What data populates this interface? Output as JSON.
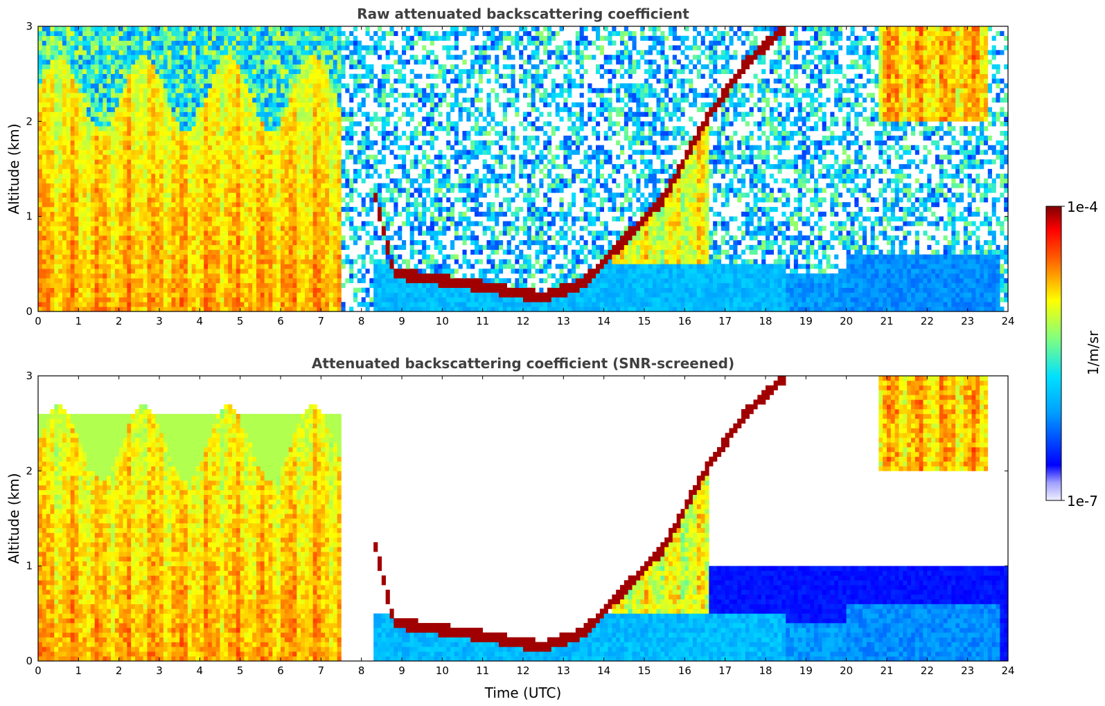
{
  "chart_data": [
    {
      "type": "heatmap",
      "title": "Raw attenuated backscattering coefficient",
      "xlabel": "",
      "ylabel": "Altitude (km)",
      "xlim": [
        0,
        24
      ],
      "ylim": [
        0,
        3
      ],
      "xticks": [
        "0",
        "1",
        "2",
        "3",
        "4",
        "5",
        "6",
        "7",
        "8",
        "9",
        "10",
        "11",
        "12",
        "13",
        "14",
        "15",
        "16",
        "17",
        "18",
        "19",
        "20",
        "21",
        "22",
        "23",
        "24"
      ],
      "yticks": [
        "0",
        "1",
        "2",
        "3"
      ],
      "color_scale": "log",
      "noise": "high",
      "cloud_base_km": [
        {
          "t": 8.3,
          "alt": 1.3
        },
        {
          "t": 8.8,
          "alt": 0.4
        },
        {
          "t": 10.5,
          "alt": 0.3
        },
        {
          "t": 12.5,
          "alt": 0.15
        },
        {
          "t": 13.5,
          "alt": 0.3
        },
        {
          "t": 15.5,
          "alt": 1.2
        },
        {
          "t": 16.5,
          "alt": 2.0
        },
        {
          "t": 17.5,
          "alt": 2.6
        },
        {
          "t": 18.5,
          "alt": 3.0
        }
      ]
    },
    {
      "type": "heatmap",
      "title": "Attenuated backscattering coefficient (SNR-screened)",
      "xlabel": "Time (UTC)",
      "ylabel": "Altitude (km)",
      "xlim": [
        0,
        24
      ],
      "ylim": [
        0,
        3
      ],
      "xticks": [
        "0",
        "1",
        "2",
        "3",
        "4",
        "5",
        "6",
        "7",
        "8",
        "9",
        "10",
        "11",
        "12",
        "13",
        "14",
        "15",
        "16",
        "17",
        "18",
        "19",
        "20",
        "21",
        "22",
        "23",
        "24"
      ],
      "yticks": [
        "0",
        "1",
        "2",
        "3"
      ],
      "color_scale": "log",
      "noise": "screened"
    }
  ],
  "colorbar": {
    "label": "1/m/sr",
    "max_label": "1e-4",
    "min_label": "1e-7",
    "colormap": "jet",
    "colors": [
      "#e8e8ff",
      "#0000ff",
      "#00c8ff",
      "#7fffb0",
      "#ffff00",
      "#ff8000",
      "#ff0000",
      "#7f0000"
    ]
  }
}
